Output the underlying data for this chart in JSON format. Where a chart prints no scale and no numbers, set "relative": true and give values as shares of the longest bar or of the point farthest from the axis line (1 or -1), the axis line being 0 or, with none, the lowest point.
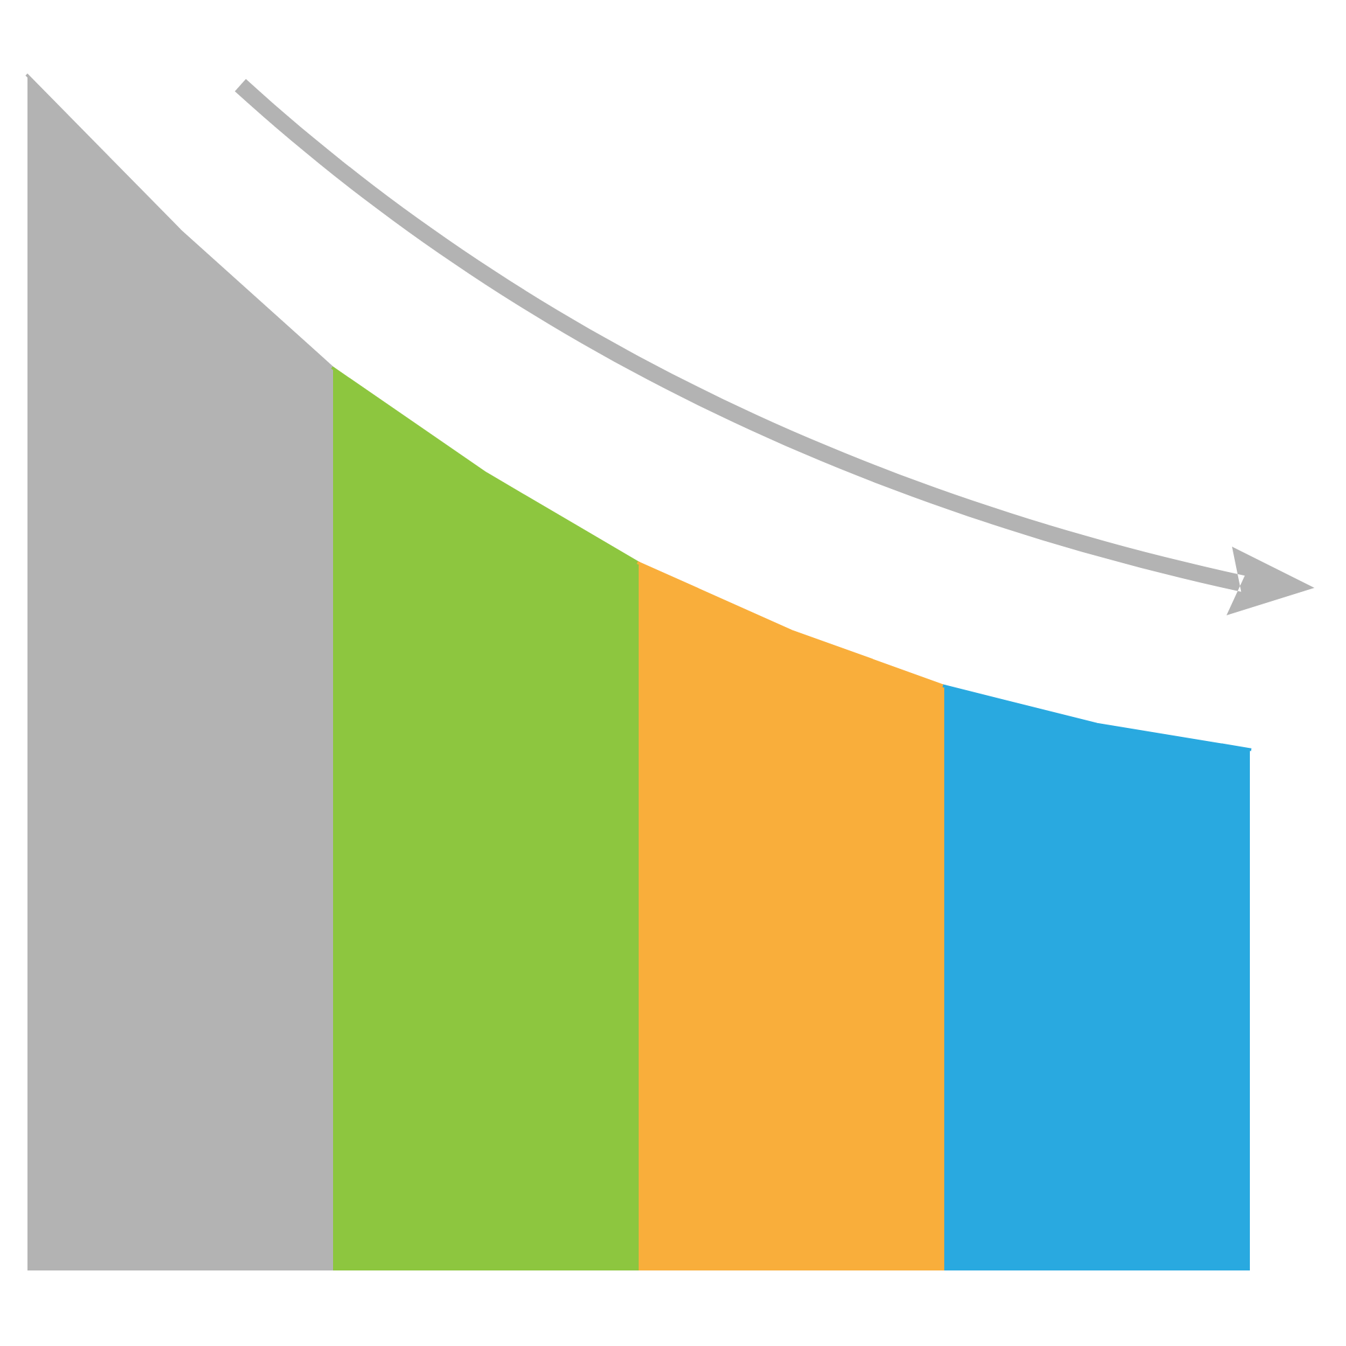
{
  "chart_data": {
    "type": "area",
    "relative": true,
    "categories": [
      null,
      null,
      null,
      null,
      null,
      null,
      null,
      null,
      null
    ],
    "series": [
      {
        "color": "#b3b3b3",
        "values": [
          1,
          0.87,
          0.755,
          null,
          null,
          null,
          null,
          null,
          null
        ]
      },
      {
        "color": "#8dc63f",
        "values": [
          null,
          null,
          0.755,
          0.667,
          0.592,
          null,
          null,
          null,
          null
        ]
      },
      {
        "color": "#f9ae3b",
        "values": [
          null,
          null,
          null,
          null,
          0.592,
          0.535,
          0.489,
          null,
          null
        ]
      },
      {
        "color": "#29a9e0",
        "values": [
          null,
          null,
          null,
          null,
          null,
          null,
          0.489,
          0.457,
          0.436
        ]
      }
    ]
  }
}
